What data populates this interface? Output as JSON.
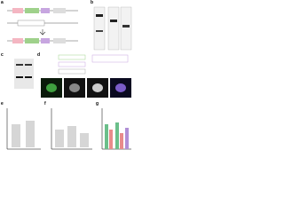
{
  "panels": {
    "a": "a",
    "b": "b",
    "c": "c",
    "d": "d",
    "e": "e",
    "f": "f",
    "g": "g"
  }
}
